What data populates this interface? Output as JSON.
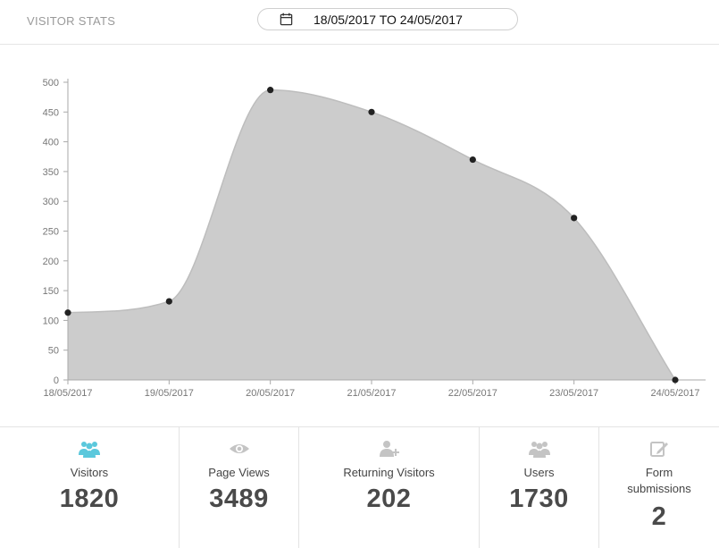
{
  "header": {
    "title": "VISITOR STATS",
    "date_range": "18/05/2017 TO 24/05/2017"
  },
  "chart_data": {
    "type": "area",
    "title": "",
    "xlabel": "",
    "ylabel": "",
    "categories": [
      "18/05/2017",
      "19/05/2017",
      "20/05/2017",
      "21/05/2017",
      "22/05/2017",
      "23/05/2017",
      "24/05/2017"
    ],
    "values": [
      113,
      132,
      487,
      450,
      370,
      272,
      0
    ],
    "ylim": [
      0,
      500
    ],
    "yticks": [
      0,
      50,
      100,
      150,
      200,
      250,
      300,
      350,
      400,
      450,
      500
    ],
    "grid": false,
    "colors": {
      "fill": "#cccccc",
      "stroke": "#bdbdbd",
      "point": "#222222"
    }
  },
  "stats": [
    {
      "label": "Visitors",
      "value": "1820",
      "icon": "users-icon",
      "color": "#5bc8dc"
    },
    {
      "label": "Page Views",
      "value": "3489",
      "icon": "eye-icon",
      "color": "#c4c4c4"
    },
    {
      "label": "Returning Visitors",
      "value": "202",
      "icon": "user-plus-icon",
      "color": "#c4c4c4"
    },
    {
      "label": "Users",
      "value": "1730",
      "icon": "users-icon",
      "color": "#c4c4c4"
    },
    {
      "label": "Form submissions",
      "value": "2",
      "icon": "edit-icon",
      "color": "#c4c4c4"
    }
  ]
}
